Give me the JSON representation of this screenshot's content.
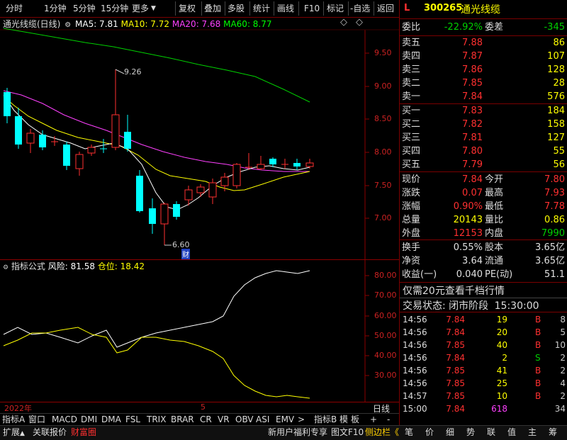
{
  "toolbar": {
    "left": [
      "分时",
      "1分钟",
      "5分钟",
      "15分钟",
      "更多"
    ],
    "right": [
      "复权",
      "叠加",
      "多股",
      "统计",
      "画线",
      "F10",
      "标记",
      "-自选",
      "返回"
    ]
  },
  "main": {
    "title": "通光线缆(日线)",
    "ma5": "MA5: 7.81",
    "ma10": "MA10: 7.72",
    "ma20": "MA20: 7.68",
    "ma60": "MA60: 8.77",
    "yticks": [
      "9.50",
      "9.00",
      "8.50",
      "8.00",
      "7.50",
      "7.00"
    ],
    "high_label": "9.26",
    "low_label": "6.60",
    "cai_badge": "财"
  },
  "sub": {
    "title": "指标公式",
    "risk": "风险: 81.58",
    "pos": "仓位: 18.42",
    "yticks": [
      "80.00",
      "70.00",
      "60.00",
      "50.00",
      "40.00",
      "30.00"
    ]
  },
  "xaxis": {
    "year": "2022年",
    "mark": "5",
    "period": "日线"
  },
  "panel": {
    "flag": "L",
    "code": "300265",
    "name": "通光线缆",
    "weibi_label": "委比",
    "weibi": "-22.92%",
    "weicha_label": "委差",
    "weicha": "-345",
    "sells": [
      {
        "label": "卖五",
        "price": "7.88",
        "vol": "86"
      },
      {
        "label": "卖四",
        "price": "7.87",
        "vol": "107"
      },
      {
        "label": "卖三",
        "price": "7.86",
        "vol": "128"
      },
      {
        "label": "卖二",
        "price": "7.85",
        "vol": "28"
      },
      {
        "label": "卖一",
        "price": "7.84",
        "vol": "576"
      }
    ],
    "buys": [
      {
        "label": "买一",
        "price": "7.83",
        "vol": "184"
      },
      {
        "label": "买二",
        "price": "7.82",
        "vol": "158"
      },
      {
        "label": "买三",
        "price": "7.81",
        "vol": "127"
      },
      {
        "label": "买四",
        "price": "7.80",
        "vol": "55"
      },
      {
        "label": "买五",
        "price": "7.79",
        "vol": "56"
      }
    ],
    "stats1": [
      {
        "l": "现价",
        "v": "7.84",
        "l2": "今开",
        "v2": "7.80"
      },
      {
        "l": "涨跌",
        "v": "0.07",
        "l2": "最高",
        "v2": "7.93"
      },
      {
        "l": "涨幅",
        "v": "0.90%",
        "l2": "最低",
        "v2": "7.78"
      },
      {
        "l": "总量",
        "v": "20143",
        "l2": "量比",
        "v2": "0.86"
      },
      {
        "l": "外盘",
        "v": "12153",
        "l2": "内盘",
        "v2": "7990"
      }
    ],
    "stats2": [
      {
        "l": "换手",
        "v": "0.55%",
        "l2": "股本",
        "v2": "3.65亿"
      },
      {
        "l": "净资",
        "v": "3.64",
        "l2": "流通",
        "v2": "3.65亿"
      },
      {
        "l": "收益(一)",
        "v": "0.040",
        "l2": "PE(动)",
        "v2": "51.1"
      }
    ],
    "promo": "仅需20元查看千档行情",
    "status_label": "交易状态: 闭市阶段",
    "status_time": "15:30:00",
    "ticks": [
      {
        "t": "14:56",
        "p": "7.84",
        "v": "19",
        "s": "B",
        "n": "8"
      },
      {
        "t": "14:56",
        "p": "7.84",
        "v": "20",
        "s": "B",
        "n": "5"
      },
      {
        "t": "14:56",
        "p": "7.85",
        "v": "40",
        "s": "B",
        "n": "10"
      },
      {
        "t": "14:56",
        "p": "7.84",
        "v": "2",
        "s": "S",
        "n": "2"
      },
      {
        "t": "14:56",
        "p": "7.85",
        "v": "41",
        "s": "B",
        "n": "2"
      },
      {
        "t": "14:56",
        "p": "7.85",
        "v": "25",
        "s": "B",
        "n": "4"
      },
      {
        "t": "14:57",
        "p": "7.85",
        "v": "10",
        "s": "B",
        "n": "2"
      },
      {
        "t": "15:00",
        "p": "7.84",
        "v": "618",
        "s": "",
        "n": "34"
      }
    ]
  },
  "tabs1": [
    "指标A",
    "窗口",
    "MACD",
    "DMI",
    "DMA",
    "FSL",
    "TRIX",
    "BRAR",
    "CR",
    "VR",
    "OBV",
    "ASI",
    "EMV",
    ">",
    "指标B",
    "模",
    "板",
    "+",
    "-"
  ],
  "tabs2_left": [
    "扩展",
    "关联报价",
    "财富圈"
  ],
  "tabs2_mid": [
    "新用户福利专享",
    "图文F10",
    "侧边栏"
  ],
  "tabs2_right": [
    "笔",
    "价",
    "细",
    "势",
    "联",
    "值",
    "主",
    "筹"
  ],
  "colors": {
    "up": "#ff3030",
    "down": "#00ffff",
    "ma5": "#ffffff",
    "ma10": "#ffff00",
    "ma20": "#ff40ff",
    "ma60": "#00ff00"
  }
}
